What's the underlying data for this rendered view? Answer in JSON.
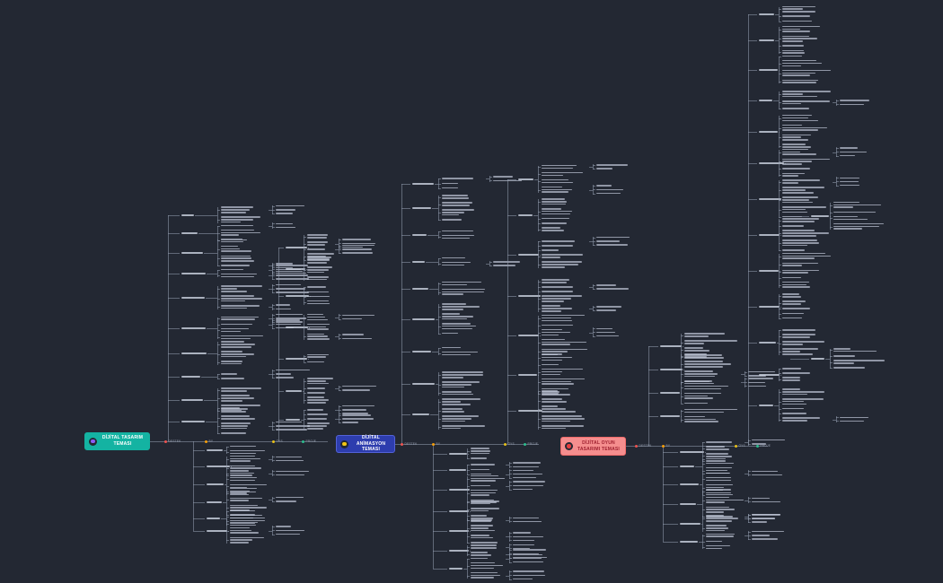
{
  "app": {
    "background": "#232833",
    "connector_color": "#969fb0",
    "branch_text_color": "#c4ccdb"
  },
  "themes": [
    {
      "title": "DİJİTAL TASARIM TEMASI",
      "fill": "#14b3a2",
      "border": "#14b3a2",
      "text_color": "#ffffff",
      "icon": "circle-dot-icon",
      "icon_dot_color": "#8b5cf6"
    },
    {
      "title": "DİJİTAL ANİMASYON TEMASI",
      "fill": "#2d3dae",
      "border": "#5362d8",
      "text_color": "#ffffff",
      "icon": "circle-dot-icon",
      "icon_dot_color": "#f3c515"
    },
    {
      "title": "DİJİTAL OYUN TASARIMI TEMASI",
      "fill": "#f58e8e",
      "border": "#ee6a6a",
      "text_color": "#9e1f2e",
      "icon": "circle-dot-icon",
      "icon_dot_color": "#e53e3e"
    }
  ],
  "milestones": {
    "labels": [
      "DESTEK",
      "BY",
      "ÖYS",
      "PROJE"
    ],
    "colors": [
      "#ef5350",
      "#f59e0b",
      "#e7c11a",
      "#2dbd8e"
    ]
  }
}
